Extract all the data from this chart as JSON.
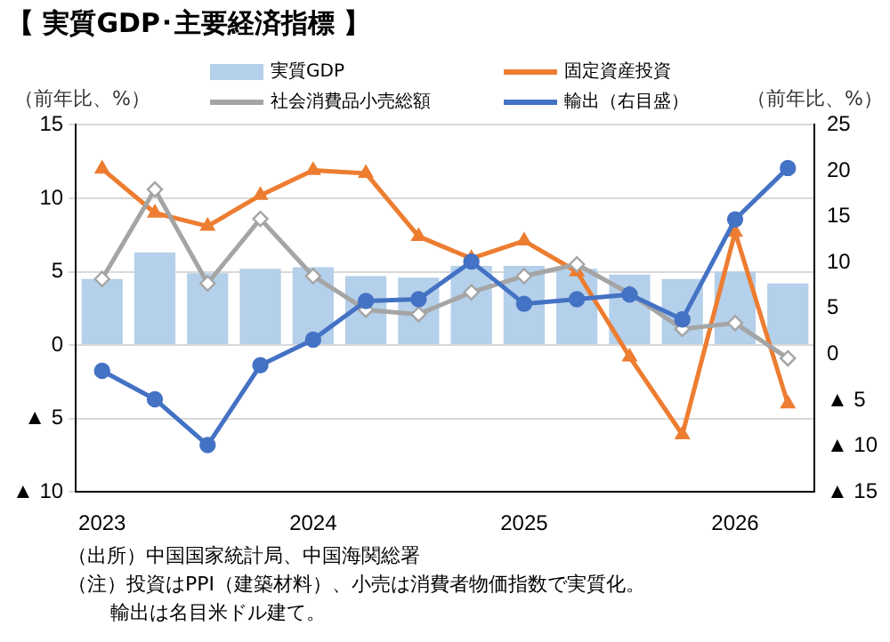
{
  "chart_data": {
    "type": "bar",
    "title": "【 実質GDP･主要経済指標 】",
    "ylabel": "（前年比、%）",
    "y2label": "（前年比、%）",
    "categories": [
      "2023",
      null,
      null,
      null,
      "2024",
      null,
      null,
      null,
      "2025",
      null,
      null,
      null,
      "2026",
      null
    ],
    "series": [
      {
        "name": "実質GDP",
        "color": "#b4d0ea",
        "values": [
          4.5,
          6.3,
          4.9,
          5.2,
          5.3,
          4.7,
          4.6,
          5.4,
          5.4,
          5.2,
          4.8,
          4.5,
          5.0,
          4.2
        ]
      },
      {
        "name": "固定資産投資",
        "type": "line",
        "color": "#ed7d31",
        "marker": "triangle",
        "values": [
          12.0,
          9.0,
          8.1,
          10.2,
          11.9,
          11.7,
          7.4,
          5.9,
          7.1,
          5.0,
          -0.8,
          -6.1,
          7.7,
          -4.0
        ]
      },
      {
        "name": "社会消費品小売総額",
        "type": "line",
        "color": "#a5a5a5",
        "marker": "diamond",
        "values": [
          4.5,
          10.6,
          4.2,
          8.6,
          4.7,
          2.4,
          2.1,
          3.6,
          4.7,
          5.5,
          3.5,
          1.1,
          1.5,
          -0.9
        ]
      },
      {
        "name": "輸出（右目盛）",
        "type": "line",
        "axis": "y2",
        "color": "#4472c4",
        "marker": "circle",
        "values": [
          -1.8,
          -4.9,
          -9.9,
          -1.2,
          1.6,
          5.8,
          6.0,
          10.1,
          5.5,
          6.0,
          6.5,
          3.8,
          14.7,
          20.3
        ]
      }
    ],
    "ylim": [
      -10,
      15
    ],
    "yticks": [
      {
        "value": -10,
        "label": "▲ 10"
      },
      {
        "value": -5,
        "label": "▲ 5"
      },
      0,
      5,
      10,
      15
    ],
    "y2lim": [
      -15,
      25
    ],
    "y2ticks": [
      {
        "value": -15,
        "label": "▲ 15"
      },
      {
        "value": -10,
        "label": "▲ 10"
      },
      {
        "value": -5,
        "label": "▲ 5"
      },
      0,
      5,
      10,
      15,
      20,
      25
    ],
    "grid": "y",
    "legend": "top",
    "annotations": [
      "（出所）中国国家統計局、中国海関総署",
      "（注）投資はPPI（建築材料）、小売は消費者物価指数で実質化。",
      "輸出は名目米ドル建て。"
    ]
  }
}
